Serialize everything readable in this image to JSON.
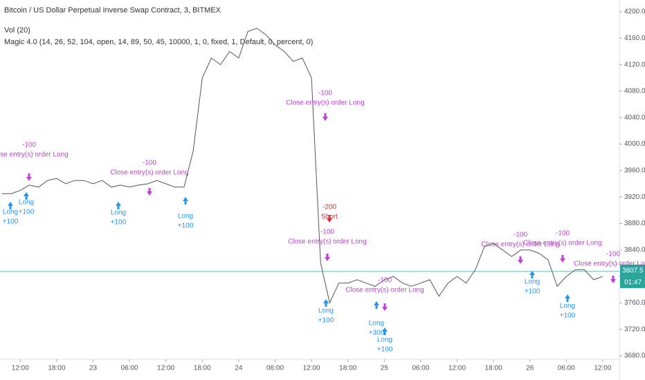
{
  "chart_data": {
    "type": "line",
    "title": "Bitcoin / US Dollar Perpetual Inverse Swap Contract, 3, BITMEX",
    "indicators": [
      "Vol (20)",
      "Magic 4.0 (14, 26, 52, 104, open, 14, 89, 50, 45, 10000, 1, 0, fixed, 1, Default, 0, percent, 0)"
    ],
    "categories": [
      null,
      null,
      "12:00",
      null,
      null,
      null,
      "18:00",
      null,
      null,
      null,
      "23",
      null,
      null,
      null,
      "06:00",
      null,
      null,
      null,
      "12:00",
      null,
      null,
      null,
      "18:00",
      null,
      null,
      null,
      "24",
      null,
      null,
      null,
      "06:00",
      null,
      null,
      null,
      "12:00",
      null,
      null,
      null,
      "18:00",
      null,
      null,
      null,
      "25",
      null,
      null,
      null,
      "06:00",
      null,
      null,
      null,
      "12:00",
      null,
      null,
      null,
      "18:00",
      null,
      null,
      null,
      "26",
      null,
      null,
      null,
      "06:00",
      null,
      null,
      null,
      "12:00"
    ],
    "values": [
      3925,
      3925,
      3930,
      3938,
      3935,
      3945,
      3948,
      3940,
      3945,
      3945,
      3940,
      3945,
      3935,
      3938,
      3935,
      3938,
      3940,
      3945,
      3940,
      3935,
      3935,
      3990,
      4100,
      4130,
      4120,
      4140,
      4130,
      4170,
      4175,
      4165,
      4150,
      4140,
      4125,
      4130,
      4100,
      3820,
      3760,
      3790,
      3790,
      3795,
      3790,
      3785,
      3795,
      3800,
      3790,
      3785,
      3790,
      3795,
      3770,
      3790,
      3800,
      3790,
      3810,
      3845,
      3850,
      3840,
      3830,
      3840,
      3840,
      3835,
      3825,
      3785,
      3800,
      3810,
      3810,
      3795,
      3800
    ],
    "color": "#555555",
    "ylim": [
      3680,
      4200
    ],
    "yticks": [
      {
        "value": 3680,
        "label": "3680.0"
      },
      {
        "value": 3720,
        "label": "3720.0"
      },
      {
        "value": 3760,
        "label": "3760.0"
      },
      {
        "value": 3800,
        "label": "3800.0"
      },
      {
        "value": 3840,
        "label": "3840.0"
      },
      {
        "value": 3880,
        "label": "3880.0"
      },
      {
        "value": 3920,
        "label": "3920.0"
      },
      {
        "value": 3960,
        "label": "3960.0"
      },
      {
        "value": 4000,
        "label": "4000.0"
      },
      {
        "value": 4040,
        "label": "4040.0"
      },
      {
        "value": 4080,
        "label": "4080.0"
      },
      {
        "value": 4120,
        "label": "4120.0"
      },
      {
        "value": 4160,
        "label": "4160.0"
      },
      {
        "value": 4200,
        "label": "4200.0"
      }
    ],
    "last_value": 3807.5,
    "countdown": "01:47",
    "orders": [
      {
        "lines": [
          "-100",
          "Close entry(s) order Long"
        ],
        "color": "#c23fd6"
      },
      {
        "lines": [
          "-100",
          "Close entry(s) order Long"
        ],
        "color": "#c23fd6"
      },
      {
        "lines": [
          "-100",
          "Close entry(s) order Long"
        ],
        "color": "#c23fd6"
      },
      {
        "lines": [
          "-200",
          "Short"
        ],
        "color": "#e0282f"
      },
      {
        "lines": [
          "-100",
          "Close entry(s) order Long"
        ],
        "color": "#c23fd6"
      },
      {
        "lines": [
          "Long",
          "+100"
        ],
        "color": "#2196f3"
      },
      {
        "lines": [
          "Long",
          "+100"
        ],
        "color": "#2196f3"
      },
      {
        "lines": [
          "Long",
          "+100"
        ],
        "color": "#2196f3"
      },
      {
        "lines": [
          "Long",
          "+300"
        ],
        "color": "#2196f3"
      },
      {
        "lines": [
          "Long",
          "+100"
        ],
        "color": "#2196f3"
      },
      {
        "lines": [
          "-100",
          "Close entry(s) order Long"
        ],
        "color": "#c23fd6"
      },
      {
        "lines": [
          "-100",
          "Close entry(s) order Long"
        ],
        "color": "#c23fd6"
      },
      {
        "lines": [
          "-100",
          "Close entry(s) order Long"
        ],
        "color": "#c23fd6"
      },
      {
        "lines": [
          "Long",
          "+100"
        ],
        "color": "#2196f3"
      },
      {
        "lines": [
          "Long",
          "+100"
        ],
        "color": "#2196f3"
      },
      {
        "lines": [
          "-100",
          "Close entry(s) order Long"
        ],
        "color": "#c23fd6"
      },
      {
        "lines": [
          "Long",
          "+100"
        ],
        "color": "#2196f3"
      },
      {
        "lines": [
          "Long",
          "+100"
        ],
        "color": "#2196f3"
      }
    ]
  }
}
